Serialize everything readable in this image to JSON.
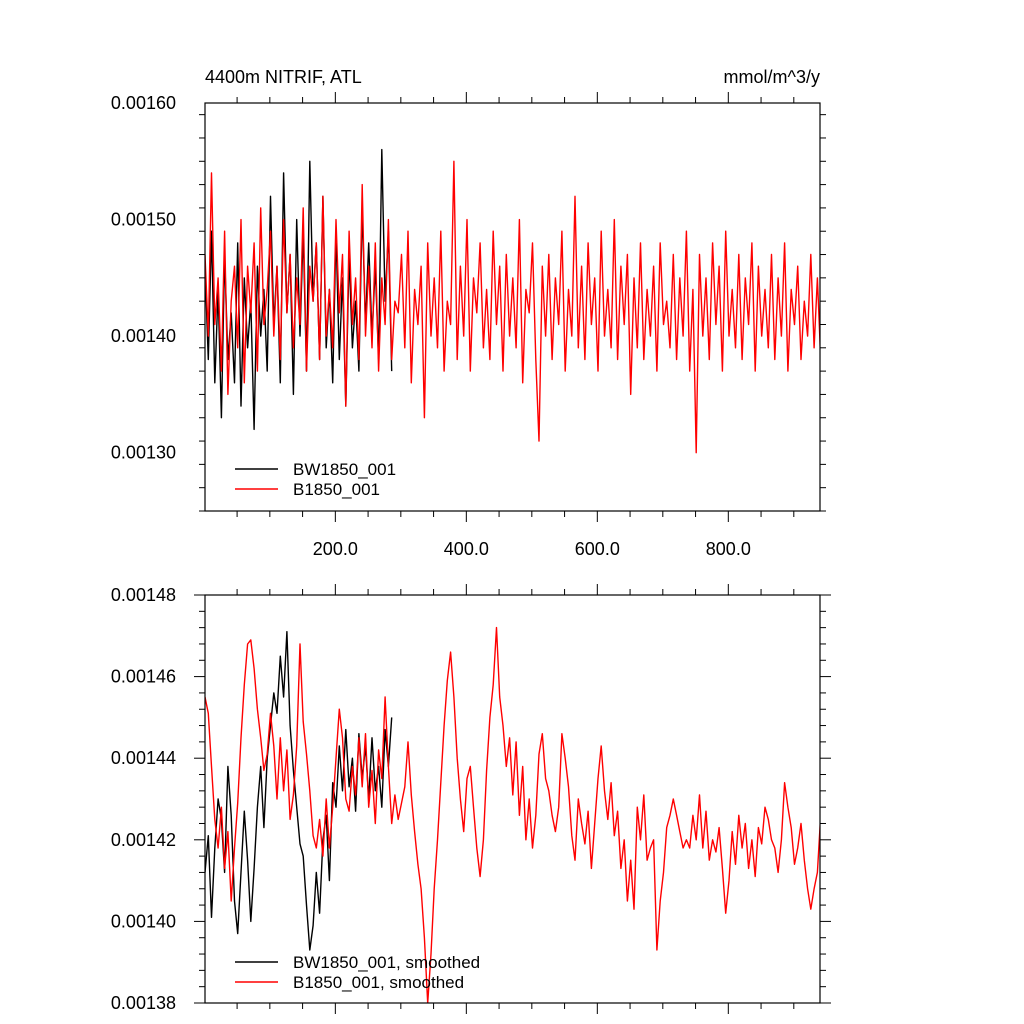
{
  "colors": {
    "series_1": "#000000",
    "series_2": "#ff0000",
    "axis": "#000000"
  },
  "chart_data": [
    {
      "type": "line",
      "title": "4400m NITRIF, ATL",
      "units": "mmol/m^3/y",
      "xlabel": "",
      "ylabel": "",
      "xlim": [
        1,
        940
      ],
      "ylim": [
        0.00125,
        0.0016
      ],
      "x_ticks": [
        200,
        400,
        600,
        800
      ],
      "x_tick_labels": [
        "200.0",
        "400.0",
        "600.0",
        "800.0"
      ],
      "y_ticks": [
        0.0013,
        0.0014,
        0.0015,
        0.0016
      ],
      "y_tick_labels": [
        "0.00130",
        "0.00140",
        "0.00150",
        "0.00160"
      ],
      "legend": {
        "placement": "bottom-left",
        "entries": [
          "BW1850_001",
          "B1850_001"
        ]
      },
      "series": [
        {
          "name": "BW1850_001",
          "color": "#000000",
          "x_start": 1,
          "x_step": 5,
          "values": [
            0.00146,
            0.00138,
            0.00149,
            0.00136,
            0.00144,
            0.00133,
            0.00147,
            0.00138,
            0.00142,
            0.00136,
            0.00148,
            0.00134,
            0.00145,
            0.00139,
            0.00143,
            0.00132,
            0.00146,
            0.0014,
            0.00144,
            0.00137,
            0.00152,
            0.00141,
            0.00146,
            0.00136,
            0.00154,
            0.00142,
            0.00147,
            0.00135,
            0.0015,
            0.0014,
            0.00149,
            0.00137,
            0.00155,
            0.00143,
            0.00148,
            0.00138,
            0.00152,
            0.00139,
            0.00144,
            0.00136,
            0.00149,
            0.00138,
            0.00145,
            0.00134,
            0.00147,
            0.00139,
            0.00143,
            0.00137,
            0.00151,
            0.00141,
            0.00148,
            0.0014,
            0.00146,
            0.00138,
            0.00156,
            0.00143,
            0.00149,
            0.00137
          ]
        },
        {
          "name": "B1850_001",
          "color": "#ff0000",
          "x_start": 1,
          "x_step": 5,
          "values": [
            0.00147,
            0.0014,
            0.00154,
            0.00141,
            0.00145,
            0.00137,
            0.00149,
            0.00135,
            0.00143,
            0.00146,
            0.00139,
            0.0015,
            0.00136,
            0.00146,
            0.00142,
            0.00148,
            0.00137,
            0.00151,
            0.00141,
            0.00144,
            0.00149,
            0.0014,
            0.00146,
            0.00138,
            0.0015,
            0.00142,
            0.00147,
            0.00139,
            0.00145,
            0.00141,
            0.00151,
            0.00137,
            0.00146,
            0.00143,
            0.00148,
            0.00138,
            0.00152,
            0.0014,
            0.00144,
            0.00139,
            0.0015,
            0.00142,
            0.00147,
            0.00134,
            0.00149,
            0.00141,
            0.00145,
            0.00138,
            0.00153,
            0.0014,
            0.00146,
            0.00139,
            0.00148,
            0.00137,
            0.00145,
            0.00141,
            0.0015,
            0.00138,
            0.00143,
            0.00142,
            0.00147,
            0.00139,
            0.00149,
            0.00136,
            0.00144,
            0.00141,
            0.00146,
            0.00133,
            0.00148,
            0.0014,
            0.00145,
            0.00139,
            0.00149,
            0.00137,
            0.00143,
            0.00141,
            0.00155,
            0.00138,
            0.00146,
            0.0014,
            0.0015,
            0.00137,
            0.00145,
            0.00142,
            0.00148,
            0.00139,
            0.00144,
            0.00138,
            0.00149,
            0.00141,
            0.00146,
            0.00137,
            0.00147,
            0.0014,
            0.00145,
            0.00139,
            0.0015,
            0.00136,
            0.00144,
            0.00142,
            0.00148,
            0.00138,
            0.00131,
            0.00146,
            0.0014,
            0.00147,
            0.00138,
            0.00145,
            0.00141,
            0.00149,
            0.00137,
            0.00144,
            0.0014,
            0.00152,
            0.00139,
            0.00146,
            0.00138,
            0.00148,
            0.00141,
            0.00145,
            0.00137,
            0.00149,
            0.0014,
            0.00144,
            0.00139,
            0.0015,
            0.00138,
            0.00146,
            0.00141,
            0.00147,
            0.00135,
            0.00145,
            0.00139,
            0.00148,
            0.00138,
            0.00144,
            0.0014,
            0.00146,
            0.00137,
            0.00148,
            0.00141,
            0.00143,
            0.00139,
            0.00147,
            0.00138,
            0.00145,
            0.0014,
            0.00149,
            0.00137,
            0.00144,
            0.0013,
            0.00147,
            0.0014,
            0.00145,
            0.00138,
            0.00148,
            0.00141,
            0.00146,
            0.00137,
            0.00149,
            0.0014,
            0.00144,
            0.00139,
            0.00147,
            0.00138,
            0.00145,
            0.00141,
            0.00148,
            0.00137,
            0.00146,
            0.0014,
            0.00144,
            0.00139,
            0.00147,
            0.00138,
            0.00145,
            0.0014,
            0.00148,
            0.00137,
            0.00144,
            0.00141,
            0.00146,
            0.00138,
            0.00143,
            0.0014,
            0.00147,
            0.00139,
            0.00145,
            0.00138,
            0.00149,
            0.00137,
            0.00144,
            0.0014,
            0.00146,
            0.00139
          ]
        }
      ]
    },
    {
      "type": "line",
      "title": "",
      "xlabel": "",
      "ylabel": "",
      "xlim": [
        1,
        940
      ],
      "ylim": [
        0.00138,
        0.00148
      ],
      "x_ticks": [
        200,
        400,
        600,
        800
      ],
      "y_ticks": [
        0.00138,
        0.0014,
        0.00142,
        0.00144,
        0.00146,
        0.00148
      ],
      "y_tick_labels": [
        "0.00138",
        "0.00140",
        "0.00142",
        "0.00144",
        "0.00146",
        "0.00148"
      ],
      "legend": {
        "placement": "bottom-left",
        "entries": [
          "BW1850_001, smoothed",
          "B1850_001, smoothed"
        ]
      },
      "series": [
        {
          "name": "BW1850_001, smoothed",
          "color": "#000000",
          "x_start": 1,
          "x_step": 5,
          "values": [
            0.001412,
            0.001421,
            0.001401,
            0.001418,
            0.00143,
            0.001425,
            0.001412,
            0.001438,
            0.001426,
            0.001405,
            0.001397,
            0.001412,
            0.001427,
            0.001415,
            0.0014,
            0.001413,
            0.001428,
            0.001438,
            0.001423,
            0.00144,
            0.001448,
            0.001456,
            0.001451,
            0.001465,
            0.001455,
            0.001471,
            0.001448,
            0.001437,
            0.001428,
            0.001419,
            0.001416,
            0.001404,
            0.001393,
            0.001399,
            0.001412,
            0.001402,
            0.00142,
            0.001426,
            0.00141,
            0.001434,
            0.001428,
            0.001443,
            0.001432,
            0.001447,
            0.001433,
            0.00144,
            0.001427,
            0.001446,
            0.001435,
            0.001443,
            0.00143,
            0.001445,
            0.001432,
            0.001438,
            0.001428,
            0.001447,
            0.001438,
            0.00145
          ]
        },
        {
          "name": "B1850_001, smoothed",
          "color": "#ff0000",
          "x_start": 1,
          "x_step": 5,
          "values": [
            0.001455,
            0.001451,
            0.001438,
            0.001425,
            0.001418,
            0.001428,
            0.001413,
            0.001422,
            0.001405,
            0.001418,
            0.001429,
            0.001445,
            0.001458,
            0.001468,
            0.001469,
            0.001462,
            0.001452,
            0.001445,
            0.001437,
            0.001441,
            0.001451,
            0.001443,
            0.00143,
            0.001445,
            0.001432,
            0.001442,
            0.001425,
            0.001431,
            0.001443,
            0.001468,
            0.001449,
            0.001441,
            0.001432,
            0.001421,
            0.001418,
            0.001425,
            0.001416,
            0.00143,
            0.001418,
            0.001428,
            0.00144,
            0.001452,
            0.001445,
            0.00143,
            0.001427,
            0.001438,
            0.001431,
            0.001445,
            0.001433,
            0.001446,
            0.001428,
            0.001437,
            0.001424,
            0.001442,
            0.001435,
            0.001455,
            0.001438,
            0.001424,
            0.001431,
            0.001425,
            0.001429,
            0.001433,
            0.001444,
            0.001431,
            0.001422,
            0.001414,
            0.001408,
            0.001396,
            0.00138,
            0.001392,
            0.001408,
            0.00142,
            0.001434,
            0.001448,
            0.001459,
            0.001466,
            0.001455,
            0.00144,
            0.00143,
            0.001422,
            0.001435,
            0.001438,
            0.001428,
            0.001418,
            0.001411,
            0.00142,
            0.001437,
            0.00145,
            0.001458,
            0.001472,
            0.001455,
            0.001448,
            0.001438,
            0.001445,
            0.001431,
            0.001444,
            0.001426,
            0.001438,
            0.00142,
            0.00143,
            0.001418,
            0.001426,
            0.001441,
            0.001446,
            0.001435,
            0.001432,
            0.001426,
            0.001422,
            0.001428,
            0.001446,
            0.00144,
            0.001433,
            0.001421,
            0.001415,
            0.00143,
            0.001424,
            0.001419,
            0.001427,
            0.001413,
            0.001424,
            0.001435,
            0.001443,
            0.001432,
            0.001425,
            0.001434,
            0.001421,
            0.001427,
            0.001413,
            0.00142,
            0.001405,
            0.001415,
            0.001403,
            0.001428,
            0.00142,
            0.001431,
            0.001415,
            0.001418,
            0.00142,
            0.001393,
            0.001405,
            0.001412,
            0.001423,
            0.001426,
            0.00143,
            0.001426,
            0.001422,
            0.001418,
            0.00142,
            0.001418,
            0.001426,
            0.00142,
            0.001431,
            0.001418,
            0.001427,
            0.001415,
            0.00142,
            0.001417,
            0.001423,
            0.001413,
            0.001402,
            0.00141,
            0.001422,
            0.001414,
            0.001426,
            0.001418,
            0.001424,
            0.001413,
            0.00142,
            0.001411,
            0.001423,
            0.001419,
            0.001428,
            0.001425,
            0.00142,
            0.001418,
            0.001412,
            0.00142,
            0.001434,
            0.001428,
            0.001423,
            0.001414,
            0.001418,
            0.001424,
            0.001415,
            0.001408,
            0.001403,
            0.001408,
            0.001412,
            0.001426,
            0.001418,
            0.001426,
            0.00142,
            0.001431,
            0.001421
          ]
        }
      ]
    }
  ]
}
